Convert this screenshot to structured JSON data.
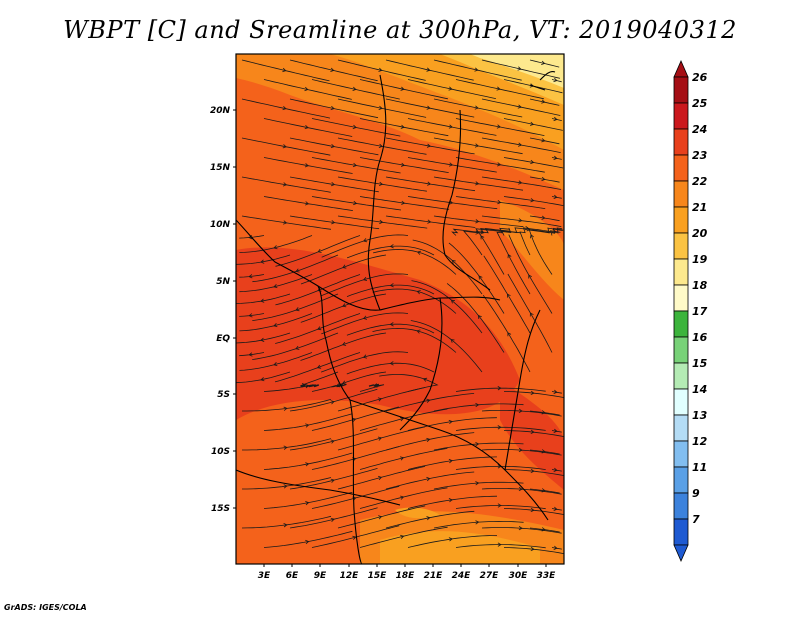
{
  "title": "WBPT [C] and Sreamline at 300hPa, VT: 2019040312",
  "credit": "GrADS: IGES/COLA",
  "map": {
    "lat_labels": [
      "20N",
      "15N",
      "10N",
      "5N",
      "EQ",
      "5S",
      "10S",
      "15S"
    ],
    "lon_labels": [
      "3E",
      "6E",
      "9E",
      "12E",
      "15E",
      "18E",
      "21E",
      "24E",
      "27E",
      "30E",
      "33E"
    ]
  },
  "colorbar": {
    "labels": [
      "26",
      "25",
      "24",
      "23",
      "22",
      "21",
      "20",
      "19",
      "18",
      "17",
      "16",
      "15",
      "14",
      "13",
      "12",
      "11",
      "9",
      "7"
    ],
    "colors": [
      "#a50f15",
      "#cb181d",
      "#e8401c",
      "#f4621b",
      "#f7861b",
      "#f9a020",
      "#fbc343",
      "#fde98e",
      "#fffac8",
      "#3cb43c",
      "#78d278",
      "#b4ebb4",
      "#e1ffff",
      "#b4dcf5",
      "#82bef0",
      "#5aa0e6",
      "#3c82dc",
      "#1e5ad2"
    ]
  }
}
